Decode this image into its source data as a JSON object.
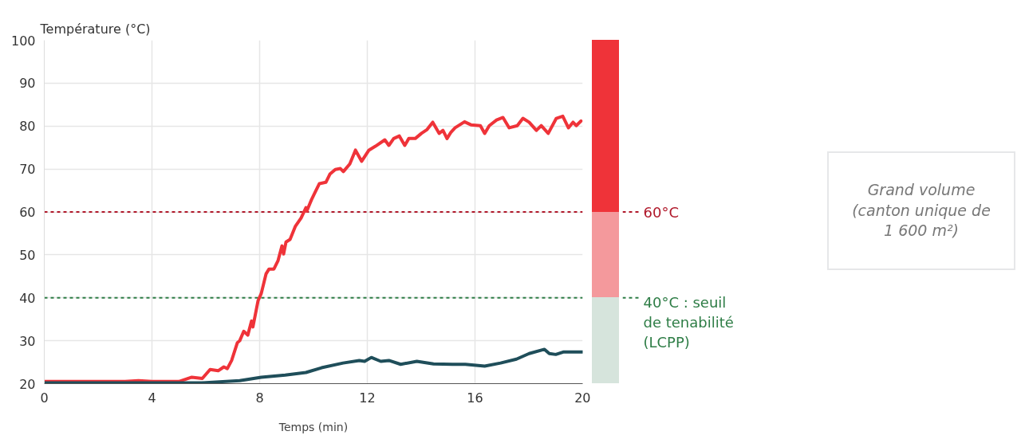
{
  "chart_data": {
    "type": "line",
    "xlabel": "Temps (min)",
    "ylabel": "Température (°C)",
    "xlim": [
      0,
      20
    ],
    "xticks": [
      0,
      4,
      8,
      12,
      16,
      20
    ],
    "ylim": [
      20,
      100
    ],
    "yticks": [
      20,
      30,
      40,
      50,
      60,
      70,
      80,
      90,
      100
    ],
    "grid": true,
    "series": [
      {
        "color": "#ef3339",
        "x": [
          0,
          1,
          2,
          3,
          3.5,
          4,
          5,
          5.48,
          5.87,
          6.16,
          6.46,
          6.67,
          6.8,
          6.96,
          7.17,
          7.26,
          7.41,
          7.56,
          7.7,
          7.75,
          7.94,
          8.06,
          8.24,
          8.35,
          8.53,
          8.68,
          8.83,
          8.89,
          8.98,
          9.13,
          9.33,
          9.54,
          9.72,
          9.75,
          9.93,
          10.07,
          10.22,
          10.46,
          10.61,
          10.81,
          11.0,
          11.11,
          11.35,
          11.56,
          11.79,
          12.06,
          12.3,
          12.65,
          12.8,
          12.98,
          13.19,
          13.39,
          13.54,
          13.78,
          14.01,
          14.22,
          14.43,
          14.67,
          14.81,
          14.96,
          15.11,
          15.26,
          15.61,
          15.85,
          16.2,
          16.36,
          16.53,
          16.8,
          17.04,
          17.27,
          17.57,
          17.78,
          18.01,
          18.28,
          18.46,
          18.72,
          19.02,
          19.26,
          19.47,
          19.64,
          19.76,
          19.94
        ],
        "values": [
          20.5,
          20.5,
          20.5,
          20.5,
          20.7,
          20.5,
          20.5,
          21.5,
          21.2,
          23.3,
          23.0,
          23.9,
          23.5,
          25.4,
          29.5,
          30.0,
          32.2,
          31.3,
          34.6,
          33.2,
          39.3,
          41.0,
          45.6,
          46.7,
          46.7,
          48.6,
          52.1,
          50.2,
          53.0,
          53.6,
          56.7,
          58.6,
          61.0,
          60.2,
          62.9,
          64.7,
          66.6,
          66.9,
          68.8,
          69.9,
          70.1,
          69.4,
          71.2,
          74.4,
          71.8,
          74.4,
          75.3,
          76.8,
          75.5,
          77.1,
          77.7,
          75.5,
          77.1,
          77.1,
          78.3,
          79.2,
          80.9,
          78.3,
          79.0,
          77.1,
          78.6,
          79.6,
          81.0,
          80.3,
          80.1,
          78.3,
          80.1,
          81.4,
          82.0,
          79.6,
          80.1,
          81.8,
          80.9,
          79.0,
          80.1,
          78.3,
          81.8,
          82.3,
          79.6,
          80.9,
          80.1,
          81.2
        ]
      },
      {
        "color": "#1f4e5a",
        "x": [
          0,
          2,
          4,
          5.5,
          5.87,
          7.26,
          8.06,
          8.95,
          9.72,
          10.3,
          11.1,
          11.7,
          11.9,
          12.15,
          12.5,
          12.8,
          13.24,
          13.84,
          14.46,
          15.17,
          15.64,
          16.36,
          16.95,
          17.54,
          18.01,
          18.58,
          18.76,
          19.0,
          19.3,
          20.0
        ],
        "values": [
          20.2,
          20.2,
          20.2,
          20.2,
          20.2,
          20.7,
          21.5,
          22.0,
          22.6,
          23.7,
          24.8,
          25.4,
          25.2,
          26.1,
          25.2,
          25.4,
          24.5,
          25.2,
          24.6,
          24.5,
          24.5,
          24.1,
          24.8,
          25.7,
          27.0,
          28.0,
          27.0,
          26.8,
          27.4,
          27.4
        ]
      }
    ],
    "ref_lines": [
      {
        "axis": "y",
        "value": 60,
        "label": "60°C",
        "color": "#b0182a",
        "line_style": "dashed"
      },
      {
        "axis": "y",
        "value": 40,
        "label": "40°C : seuil\nde tenabilité\n(LCPP)",
        "color": "#2e7d46",
        "line_style": "dashed"
      }
    ],
    "annotations": [
      "Grand volume (canton unique de 1 600 m²)"
    ]
  }
}
